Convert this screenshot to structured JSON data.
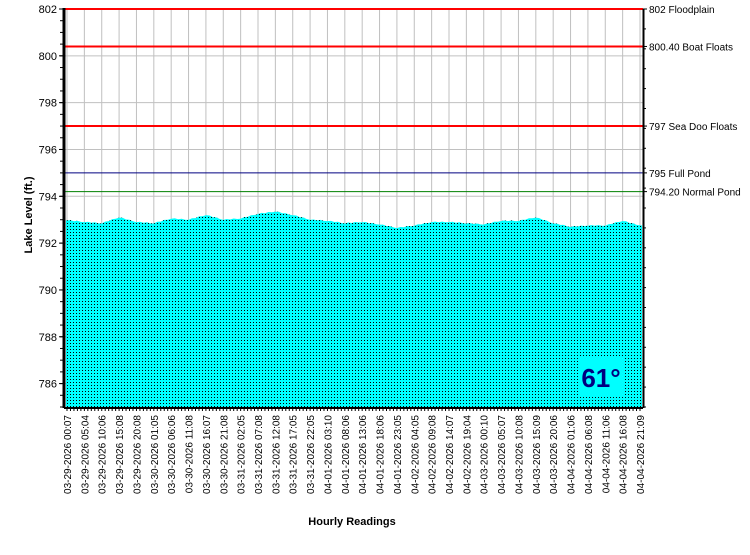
{
  "chart_data": {
    "type": "area",
    "title": "",
    "xlabel": "Hourly Readings",
    "ylabel": "Lake Level (ft.)",
    "ylim": [
      785,
      802
    ],
    "yticks": [
      786,
      788,
      790,
      792,
      794,
      796,
      798,
      800,
      802
    ],
    "grid": true,
    "categories": [
      "03-29-2026 00:07",
      "03-29-2026 05:04",
      "03-29-2026 10:06",
      "03-29-2026 15:08",
      "03-29-2026 20:08",
      "03-30-2026 01:05",
      "03-30-2026 06:06",
      "03-30-2026 11:08",
      "03-30-2026 16:07",
      "03-30-2026 21:08",
      "03-31-2026 02:05",
      "03-31-2026 07:08",
      "03-31-2026 12:08",
      "03-31-2026 17:05",
      "03-31-2026 22:05",
      "04-01-2026 03:10",
      "04-01-2026 08:06",
      "04-01-2026 13:06",
      "04-01-2026 18:06",
      "04-01-2026 23:05",
      "04-02-2026 04:05",
      "04-02-2026 09:08",
      "04-02-2026 14:07",
      "04-02-2026 19:04",
      "04-03-2026 00:10",
      "04-03-2026 05:07",
      "04-03-2026 10:08",
      "04-03-2026 15:09",
      "04-03-2026 20:06",
      "04-04-2026 01:06",
      "04-04-2026 06:08",
      "04-04-2026 11:06",
      "04-04-2026 16:08",
      "04-04-2026 21:09"
    ],
    "series": [
      {
        "name": "Lake Level",
        "color": "#00ffff",
        "values": [
          792.98,
          792.9,
          792.85,
          793.1,
          792.9,
          792.85,
          793.05,
          793.0,
          793.2,
          793.0,
          793.05,
          793.25,
          793.35,
          793.2,
          793.0,
          792.95,
          792.85,
          792.9,
          792.8,
          792.65,
          792.75,
          792.9,
          792.9,
          792.85,
          792.8,
          792.95,
          792.95,
          793.1,
          792.85,
          792.7,
          792.75,
          792.75,
          792.95,
          792.75
        ]
      }
    ],
    "reference_lines": [
      {
        "value": 802,
        "label": "802 Floodplain",
        "color": "#ff0000"
      },
      {
        "value": 800.4,
        "label": "800.40 Boat Floats",
        "color": "#ff0000"
      },
      {
        "value": 797,
        "label": "797 Sea Doo Floats",
        "color": "#ff0000"
      },
      {
        "value": 795,
        "label": "795 Full Pond",
        "color": "#000080"
      },
      {
        "value": 794.2,
        "label": "794.20 Normal Pond",
        "color": "#008000"
      }
    ],
    "annotation": "61°"
  }
}
